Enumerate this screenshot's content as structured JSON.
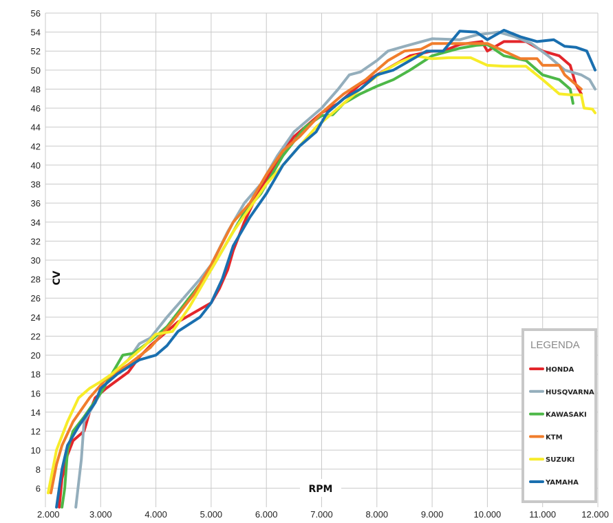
{
  "chart_data": {
    "type": "line",
    "xlabel": "RPM",
    "ylabel": "CV",
    "xlim": [
      2000,
      12000
    ],
    "ylim": [
      4,
      56
    ],
    "grid": true,
    "x_ticks": [
      {
        "value": 2000,
        "label": "2.000"
      },
      {
        "value": 3000,
        "label": "3.000"
      },
      {
        "value": 4000,
        "label": "4.000"
      },
      {
        "value": 5000,
        "label": "5.000"
      },
      {
        "value": 6000,
        "label": "6.000"
      },
      {
        "value": 7000,
        "label": "7.000"
      },
      {
        "value": 8000,
        "label": "8.000"
      },
      {
        "value": 9000,
        "label": "9.000"
      },
      {
        "value": 10000,
        "label": "10.000"
      },
      {
        "value": 11000,
        "label": "11.000"
      },
      {
        "value": 12000,
        "label": "12.000"
      }
    ],
    "y_ticks": [
      6,
      8,
      10,
      12,
      14,
      16,
      18,
      20,
      22,
      24,
      26,
      28,
      30,
      32,
      34,
      36,
      38,
      40,
      42,
      44,
      46,
      48,
      50,
      52,
      54,
      56
    ],
    "legend": {
      "title": "LEGENDA",
      "position": "bottom-right"
    },
    "series": [
      {
        "name": "HONDA",
        "color": "#e3262b",
        "points": [
          [
            2250,
            4
          ],
          [
            2300,
            7
          ],
          [
            2400,
            9.5
          ],
          [
            2500,
            11
          ],
          [
            2700,
            12
          ],
          [
            2800,
            14
          ],
          [
            2900,
            15.5
          ],
          [
            3100,
            16.5
          ],
          [
            3500,
            18.2
          ],
          [
            3700,
            19.8
          ],
          [
            3900,
            21
          ],
          [
            4200,
            22.5
          ],
          [
            4400,
            23.5
          ],
          [
            4700,
            24.5
          ],
          [
            5000,
            25.5
          ],
          [
            5150,
            27
          ],
          [
            5300,
            29
          ],
          [
            5400,
            31
          ],
          [
            5600,
            34
          ],
          [
            5800,
            36.5
          ],
          [
            6000,
            38.5
          ],
          [
            6300,
            41.5
          ],
          [
            6500,
            43
          ],
          [
            6800,
            44.5
          ],
          [
            7000,
            45.5
          ],
          [
            7300,
            46.5
          ],
          [
            7700,
            48.5
          ],
          [
            8000,
            49.5
          ],
          [
            8300,
            50.5
          ],
          [
            8600,
            51.5
          ],
          [
            9000,
            52
          ],
          [
            9200,
            52
          ],
          [
            9500,
            52.7
          ],
          [
            9900,
            53
          ],
          [
            10000,
            52
          ],
          [
            10300,
            53
          ],
          [
            10700,
            53
          ],
          [
            11000,
            52
          ],
          [
            11300,
            51.5
          ],
          [
            11500,
            50.5
          ],
          [
            11600,
            48.5
          ],
          [
            11700,
            47.5
          ]
        ]
      },
      {
        "name": "HUSQVARNA",
        "color": "#94aebc",
        "points": [
          [
            2550,
            4
          ],
          [
            2650,
            9
          ],
          [
            2700,
            13
          ],
          [
            2800,
            14
          ],
          [
            3000,
            16
          ],
          [
            3200,
            18
          ],
          [
            3500,
            19.5
          ],
          [
            3700,
            21.2
          ],
          [
            3900,
            21.8
          ],
          [
            4200,
            24
          ],
          [
            4500,
            26
          ],
          [
            4800,
            28
          ],
          [
            5000,
            29.5
          ],
          [
            5300,
            33
          ],
          [
            5600,
            36
          ],
          [
            5900,
            38
          ],
          [
            6200,
            41
          ],
          [
            6500,
            43.5
          ],
          [
            7000,
            46
          ],
          [
            7300,
            48
          ],
          [
            7500,
            49.5
          ],
          [
            7700,
            49.8
          ],
          [
            8000,
            51
          ],
          [
            8200,
            52
          ],
          [
            8500,
            52.5
          ],
          [
            9000,
            53.3
          ],
          [
            9500,
            53.2
          ],
          [
            9800,
            53.7
          ],
          [
            10200,
            54
          ],
          [
            10500,
            53.5
          ],
          [
            10800,
            52.8
          ],
          [
            11100,
            51.5
          ],
          [
            11400,
            50
          ],
          [
            11700,
            49.5
          ],
          [
            11850,
            49
          ],
          [
            11950,
            48
          ]
        ]
      },
      {
        "name": "KAWASAKI",
        "color": "#4db848",
        "points": [
          [
            2300,
            4
          ],
          [
            2350,
            6
          ],
          [
            2400,
            10
          ],
          [
            2500,
            12
          ],
          [
            2700,
            13.5
          ],
          [
            3000,
            16
          ],
          [
            3200,
            18
          ],
          [
            3400,
            20
          ],
          [
            3600,
            20.2
          ],
          [
            3900,
            21.5
          ],
          [
            4200,
            23
          ],
          [
            4600,
            26
          ],
          [
            5000,
            29
          ],
          [
            5300,
            32
          ],
          [
            5600,
            35
          ],
          [
            5900,
            37
          ],
          [
            6300,
            41
          ],
          [
            6700,
            44
          ],
          [
            7000,
            45.2
          ],
          [
            7200,
            45.3
          ],
          [
            7400,
            46.5
          ],
          [
            7700,
            47.5
          ],
          [
            8000,
            48.3
          ],
          [
            8300,
            49
          ],
          [
            8600,
            50
          ],
          [
            9000,
            51.5
          ],
          [
            9500,
            52.3
          ],
          [
            9800,
            52.6
          ],
          [
            10000,
            52.7
          ],
          [
            10300,
            51.5
          ],
          [
            10700,
            51
          ],
          [
            11000,
            49.5
          ],
          [
            11300,
            49
          ],
          [
            11500,
            48
          ],
          [
            11550,
            46.5
          ]
        ]
      },
      {
        "name": "KTM",
        "color": "#f07d2c",
        "points": [
          [
            2100,
            5.5
          ],
          [
            2200,
            8.5
          ],
          [
            2300,
            10.5
          ],
          [
            2500,
            13
          ],
          [
            2800,
            15.5
          ],
          [
            3100,
            17.5
          ],
          [
            3500,
            19
          ],
          [
            3900,
            20.8
          ],
          [
            4300,
            23.5
          ],
          [
            4700,
            26.5
          ],
          [
            5000,
            29.5
          ],
          [
            5400,
            34
          ],
          [
            5700,
            36
          ],
          [
            6000,
            39
          ],
          [
            6300,
            41.5
          ],
          [
            6600,
            43
          ],
          [
            7000,
            45.5
          ],
          [
            7400,
            47.5
          ],
          [
            7800,
            49
          ],
          [
            8200,
            51
          ],
          [
            8500,
            52
          ],
          [
            8800,
            52.2
          ],
          [
            9000,
            52.8
          ],
          [
            9200,
            52.8
          ],
          [
            9600,
            52.8
          ],
          [
            10000,
            52.8
          ],
          [
            10300,
            52
          ],
          [
            10600,
            51.2
          ],
          [
            10900,
            51.2
          ],
          [
            11000,
            50.5
          ],
          [
            11300,
            50.5
          ],
          [
            11400,
            49.5
          ],
          [
            11700,
            48
          ]
        ]
      },
      {
        "name": "SUZUKI",
        "color": "#f7ec29",
        "points": [
          [
            2050,
            5.5
          ],
          [
            2200,
            10
          ],
          [
            2400,
            13
          ],
          [
            2600,
            15.5
          ],
          [
            2800,
            16.5
          ],
          [
            3000,
            17.2
          ],
          [
            3200,
            18
          ],
          [
            3400,
            19
          ],
          [
            3600,
            20
          ],
          [
            3800,
            21
          ],
          [
            4000,
            22.2
          ],
          [
            4300,
            22.5
          ],
          [
            4600,
            25
          ],
          [
            5000,
            29
          ],
          [
            5400,
            33
          ],
          [
            5700,
            35.5
          ],
          [
            6000,
            38
          ],
          [
            6300,
            40
          ],
          [
            6600,
            42
          ],
          [
            6900,
            44
          ],
          [
            7200,
            45.5
          ],
          [
            7500,
            47
          ],
          [
            7800,
            48.5
          ],
          [
            8100,
            49.8
          ],
          [
            8400,
            50.8
          ],
          [
            8700,
            51.5
          ],
          [
            9000,
            51.2
          ],
          [
            9300,
            51.3
          ],
          [
            9700,
            51.3
          ],
          [
            10000,
            50.5
          ],
          [
            10300,
            50.4
          ],
          [
            10700,
            50.4
          ],
          [
            11000,
            49
          ],
          [
            11300,
            47.5
          ],
          [
            11500,
            47.4
          ],
          [
            11700,
            47.4
          ],
          [
            11750,
            46
          ],
          [
            11900,
            45.9
          ],
          [
            11950,
            45.5
          ]
        ]
      },
      {
        "name": "YAMAHA",
        "color": "#1a6faf",
        "points": [
          [
            2200,
            4
          ],
          [
            2300,
            8
          ],
          [
            2400,
            10.5
          ],
          [
            2600,
            12.5
          ],
          [
            2900,
            15
          ],
          [
            3000,
            16.5
          ],
          [
            3300,
            18
          ],
          [
            3700,
            19.5
          ],
          [
            4000,
            20
          ],
          [
            4200,
            21
          ],
          [
            4400,
            22.5
          ],
          [
            4800,
            24
          ],
          [
            5000,
            25.5
          ],
          [
            5200,
            28
          ],
          [
            5400,
            31.5
          ],
          [
            5700,
            34.5
          ],
          [
            6000,
            37
          ],
          [
            6300,
            40
          ],
          [
            6600,
            42
          ],
          [
            6900,
            43.5
          ],
          [
            7100,
            45.5
          ],
          [
            7400,
            47
          ],
          [
            7700,
            48
          ],
          [
            8000,
            49.5
          ],
          [
            8300,
            50
          ],
          [
            8600,
            51
          ],
          [
            8900,
            52
          ],
          [
            9200,
            52
          ],
          [
            9500,
            54.1
          ],
          [
            9800,
            54
          ],
          [
            10000,
            53.2
          ],
          [
            10300,
            54.2
          ],
          [
            10600,
            53.5
          ],
          [
            10900,
            53
          ],
          [
            11200,
            53.2
          ],
          [
            11400,
            52.5
          ],
          [
            11600,
            52.4
          ],
          [
            11800,
            52
          ],
          [
            11950,
            50
          ]
        ]
      }
    ]
  }
}
